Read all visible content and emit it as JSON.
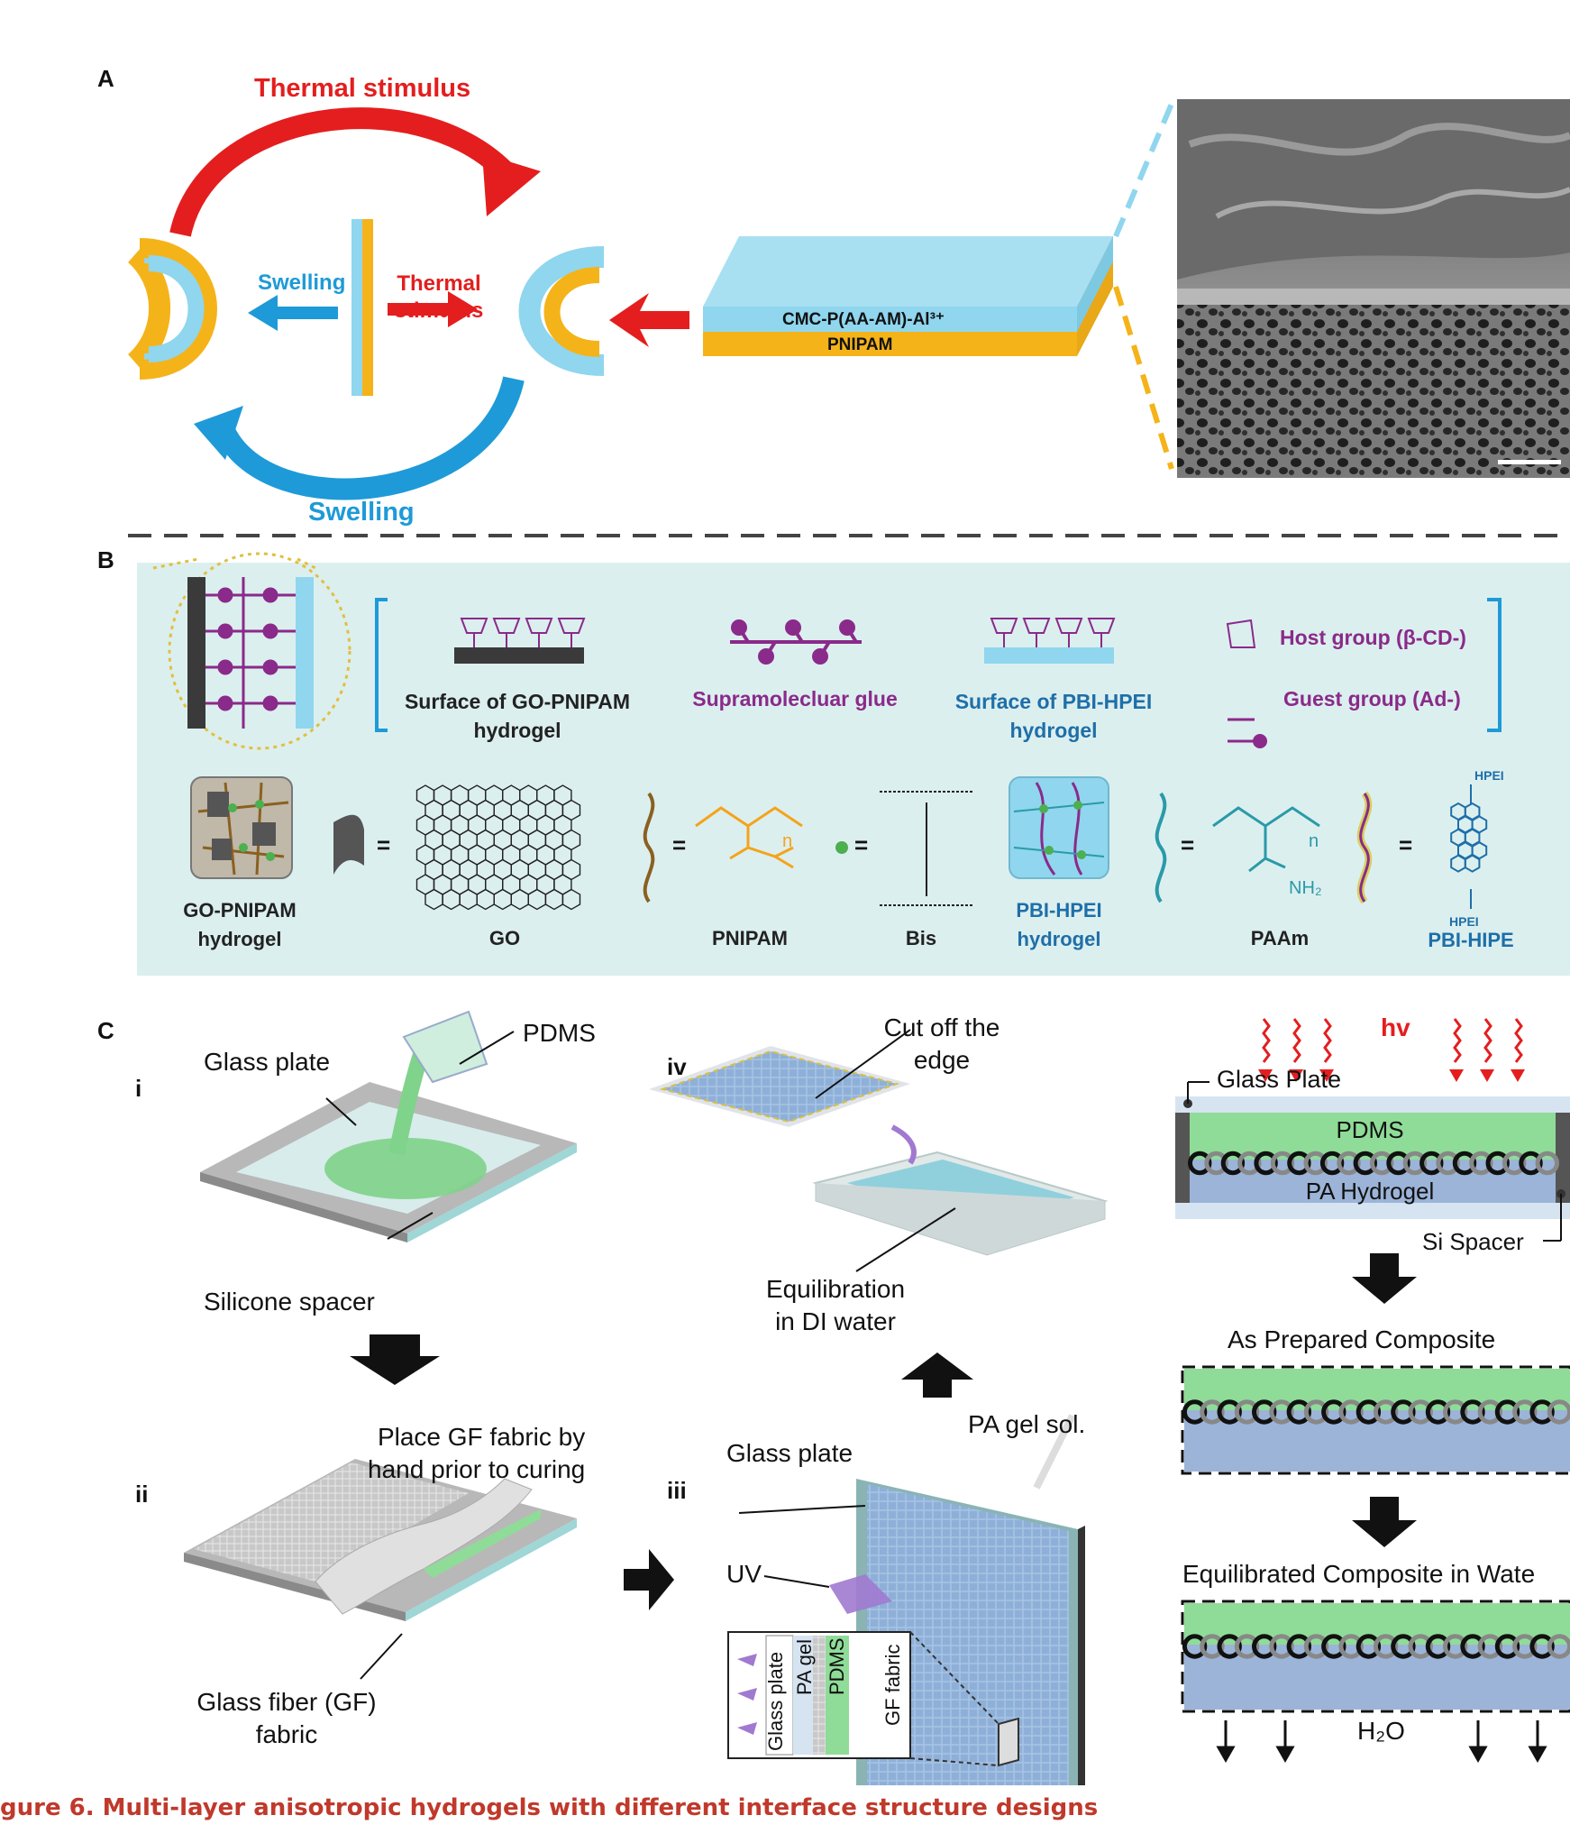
{
  "panels": {
    "a": "A",
    "b": "B",
    "c": "C"
  },
  "a": {
    "thermal_top": "Thermal stimulus",
    "swelling_bottom": "Swelling",
    "swelling_mid": "Swelling",
    "thermal_mid_1": "Thermal",
    "thermal_mid_2": "stimulus",
    "layer_top": "CMC-P(AA-AM)-Al³⁺",
    "layer_bottom": "PNIPAM",
    "colors": {
      "blue": "#8fd6ee",
      "orange": "#f5b31a",
      "red": "#e41e1e",
      "arrowblue": "#1e9ad8"
    }
  },
  "b": {
    "surface_go_1": "Surface of GO-PNIPAM",
    "surface_go_2": "hydrogel",
    "glue": "Supramolecluar glue",
    "surface_pbi_1": "Surface of PBI-HPEI",
    "surface_pbi_2": "hydrogel",
    "host": "Host group (β-CD-)",
    "guest": "Guest group (Ad-)",
    "go_pnipam_1": "GO-PNIPAM",
    "go_pnipam_2": "hydrogel",
    "go": "GO",
    "pnipam": "PNIPAM",
    "bis": "Bis",
    "pbi_hpei_1": "PBI-HPEI",
    "pbi_hpei_2": "hydrogel",
    "paam": "PAAm",
    "pbi_hipe": "PBI-HIPE",
    "hpei_top": "HPEI",
    "hpei_bottom": "HPEI",
    "n1": "n",
    "n2": "n",
    "nh2": "NH₂",
    "colors": {
      "bg": "#dcefef",
      "purple": "#8a2a8a",
      "blue": "#1e6fa8",
      "orange": "#d4a040",
      "teal": "#2a9aa8"
    }
  },
  "c": {
    "roman_i": "i",
    "roman_ii": "ii",
    "roman_iii": "iii",
    "roman_iv": "iv",
    "pdms": "PDMS",
    "glass_plate_i": "Glass plate",
    "silicone_spacer": "Silicone spacer",
    "place_gf_1": "Place GF fabric by",
    "place_gf_2": "hand prior to curing",
    "glass_fiber_1": "Glass fiber (GF)",
    "glass_fiber_2": "fabric",
    "glass_plate_iii": "Glass plate",
    "pa_gel_sol": "PA gel sol.",
    "uv": "UV",
    "inset_glass": "Glass plate",
    "inset_pa": "PA gel",
    "inset_pdms": "PDMS",
    "inset_gf": "GF fabric",
    "cut_1": "Cut off the",
    "cut_2": "edge",
    "equil_1": "Equilibration",
    "equil_2": "in DI water",
    "hv": "hv",
    "glass_plate_r": "Glass Plate",
    "pdms_r": "PDMS",
    "pa_hydrogel": "PA Hydrogel",
    "si_spacer": "Si Spacer",
    "as_prepared": "As Prepared Composite",
    "equilibrated": "Equilibrated Composite in Wate",
    "h2o": "H₂O",
    "colors": {
      "green": "#8fdc98",
      "lightblue": "#b8cce6",
      "hv": "#e41e1e"
    }
  },
  "caption": {
    "title": "gure 6.  Multi-layer anisotropic hydrogels with different interface structure designs"
  }
}
